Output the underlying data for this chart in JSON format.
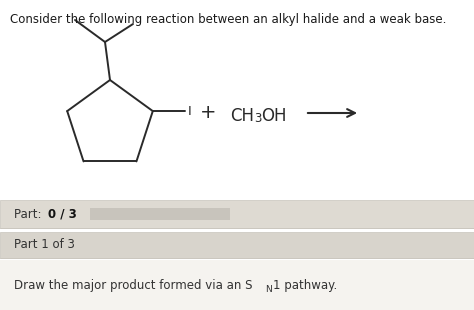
{
  "title": "Consider the following reaction between an alkyl halide and a weak base.",
  "title_fontsize": 8.5,
  "title_color": "#1a1a1a",
  "bg_color": "#ffffff",
  "molecule_color": "#2a2a2a",
  "panel1_bg": "#dedad2",
  "panel2_bg": "#d8d4cc",
  "panel3_bg": "#f5f3ef",
  "panel_border": "#c8c4bc",
  "panel_text_color": "#333333",
  "panel1_text": "Part: ",
  "panel1_bold": "0 / 3",
  "panel2_text": "Part 1 of 3",
  "panel3_text": "Draw the major product formed via an S",
  "panel3_sub": "N",
  "panel3_end": "1 pathway.",
  "progress_bar_color": "#c8c4bc",
  "lw": 1.4
}
